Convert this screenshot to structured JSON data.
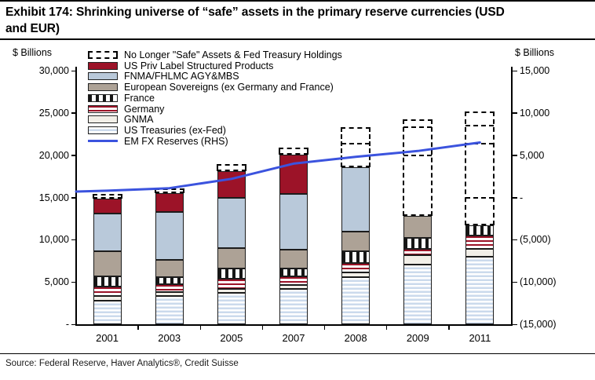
{
  "title": "Exhibit 174: Shrinking universe of “safe” assets in the primary reserve currencies (USD and EUR)",
  "source": "Source: Federal Reserve, Haver Analytics®, Credit Suisse",
  "left_axis": {
    "label": "$ Billions",
    "ticks": [
      "30,000",
      "25,000",
      "20,000",
      "15,000",
      "10,000",
      "5,000",
      "-"
    ],
    "max": 30000,
    "min": 0,
    "step": 5000
  },
  "right_axis": {
    "label": "$ Billions",
    "ticks": [
      "15,000",
      "10,000",
      "5,000",
      "-",
      "(5,000)",
      "(10,000)",
      "(15,000)"
    ],
    "max": 15000,
    "min": -15000,
    "step": 5000
  },
  "legend": [
    {
      "label": "No Longer \"Safe\" Assets & Fed Treasury Holdings",
      "swatch": "dashed"
    },
    {
      "label": "US Priv Label Structured Products",
      "swatch": "uspriv"
    },
    {
      "label": "FNMA/FHLMC AGY&MBS",
      "swatch": "fnma"
    },
    {
      "label": "European Sovereigns (ex Germany and France)",
      "swatch": "eursov"
    },
    {
      "label": "France",
      "swatch": "france"
    },
    {
      "label": "Germany",
      "swatch": "germany"
    },
    {
      "label": "GNMA",
      "swatch": "gnma"
    },
    {
      "label": "US Treasuries (ex-Fed)",
      "swatch": "ust"
    },
    {
      "label": "EM FX Reserves (RHS)",
      "swatch": "line"
    }
  ],
  "chart_data": {
    "type": "bar",
    "subtype": "stacked-bars-with-line-overlay",
    "categories": [
      "2001",
      "2003",
      "2005",
      "2007",
      "2008",
      "2009",
      "2011"
    ],
    "units": "$ Billions",
    "left_axis_range": [
      0,
      30000
    ],
    "right_axis_range": [
      -15000,
      15000
    ],
    "grid": false,
    "legend_position": "top-left-inside",
    "series": [
      {
        "name": "US Treasuries (ex-Fed)",
        "swatch": "ust",
        "values": [
          2800,
          3300,
          3700,
          4200,
          5600,
          7050,
          8000
        ]
      },
      {
        "name": "GNMA",
        "swatch": "gnma",
        "values": [
          550,
          500,
          450,
          450,
          550,
          1100,
          900
        ]
      },
      {
        "name": "Germany",
        "swatch": "germany",
        "values": [
          1100,
          900,
          1200,
          1050,
          1100,
          750,
          1600
        ]
      },
      {
        "name": "France",
        "swatch": "france",
        "values": [
          1200,
          850,
          1200,
          850,
          1400,
          1300,
          1200
        ]
      },
      {
        "name": "European Sovereigns (ex Germany and France)",
        "swatch": "eursov",
        "values": [
          3000,
          2100,
          2500,
          2300,
          2300,
          2600,
          0
        ]
      },
      {
        "name": "FNMA/FHLMC AGY&MBS",
        "swatch": "fnma",
        "values": [
          4450,
          5600,
          5900,
          6600,
          7600,
          0,
          0
        ]
      },
      {
        "name": "US Priv Label Structured Products",
        "swatch": "uspriv",
        "values": [
          1750,
          2300,
          3200,
          4650,
          0,
          0,
          0
        ]
      },
      {
        "name": "No Longer \"Safe\" Assets & Fed Treasury Holdings",
        "swatch": "dashed",
        "style": "dashed-box",
        "values": [
          550,
          500,
          800,
          800,
          4750,
          11450,
          13450
        ],
        "inner_divider_levels": {
          "2008": [
            21400
          ],
          "2009": [
            23300,
            20000
          ],
          "2011": [
            23500,
            21400,
            15000
          ]
        }
      }
    ],
    "line_series": {
      "name": "EM FX Reserves (RHS)",
      "axis": "right",
      "color": "#3B53DE",
      "edge_start_value": 700,
      "values": [
        800,
        1100,
        2200,
        4000,
        4800,
        5500,
        6500
      ]
    },
    "colors": {
      "us_priv_label": "#9C1328",
      "fnma_fhlmc": "#B9C9DA",
      "european_sovereigns": "#ADA296",
      "gnma": "#F2EFE8",
      "us_treasuries_stripe": "#CBDAEC",
      "em_fx_line": "#3B53DE",
      "dashed_outline": "#000000"
    }
  }
}
